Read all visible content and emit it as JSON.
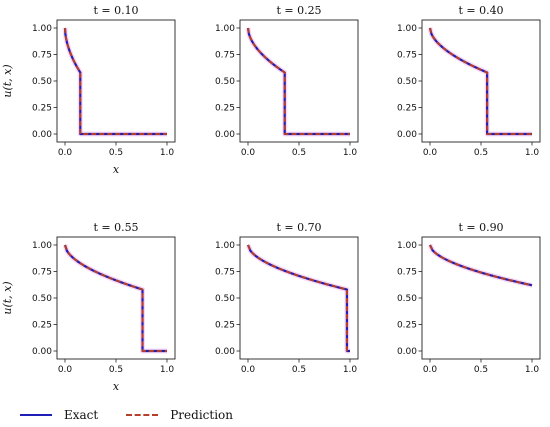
{
  "chart_data": [
    {
      "type": "line",
      "title": "t = 0.10",
      "ylabel": "u(t, x)",
      "xlabel": "x",
      "shock": 0.15,
      "left_value": 0.58,
      "x_ticks": [
        "0.0",
        "0.5",
        "1.0"
      ],
      "y_ticks": [
        "0.00",
        "0.25",
        "0.50",
        "0.75",
        "1.00"
      ],
      "xlim": [
        0,
        1
      ],
      "ylim": [
        0,
        1
      ],
      "series": [
        {
          "name": "Exact",
          "color": "#1f1fb8",
          "style": "solid"
        },
        {
          "name": "Prediction",
          "color": "#b5402a",
          "style": "dashed"
        }
      ]
    },
    {
      "type": "line",
      "title": "t = 0.25",
      "ylabel": "",
      "xlabel": "",
      "shock": 0.36,
      "left_value": 0.58,
      "x_ticks": [
        "0.0",
        "0.5",
        "1.0"
      ],
      "y_ticks": [
        "0.00",
        "0.25",
        "0.50",
        "0.75",
        "1.00"
      ],
      "xlim": [
        0,
        1
      ],
      "ylim": [
        0,
        1
      ],
      "series": [
        {
          "name": "Exact",
          "color": "#1f1fb8",
          "style": "solid"
        },
        {
          "name": "Prediction",
          "color": "#b5402a",
          "style": "dashed"
        }
      ]
    },
    {
      "type": "line",
      "title": "t = 0.40",
      "ylabel": "",
      "xlabel": "",
      "shock": 0.56,
      "left_value": 0.58,
      "x_ticks": [
        "0.0",
        "0.5",
        "1.0"
      ],
      "y_ticks": [
        "0.00",
        "0.25",
        "0.50",
        "0.75",
        "1.00"
      ],
      "xlim": [
        0,
        1
      ],
      "ylim": [
        0,
        1
      ],
      "series": [
        {
          "name": "Exact",
          "color": "#1f1fb8",
          "style": "solid"
        },
        {
          "name": "Prediction",
          "color": "#b5402a",
          "style": "dashed"
        }
      ]
    },
    {
      "type": "line",
      "title": "t = 0.55",
      "ylabel": "u(t, x)",
      "xlabel": "x",
      "shock": 0.76,
      "left_value": 0.58,
      "x_ticks": [
        "0.0",
        "0.5",
        "1.0"
      ],
      "y_ticks": [
        "0.00",
        "0.25",
        "0.50",
        "0.75",
        "1.00"
      ],
      "xlim": [
        0,
        1
      ],
      "ylim": [
        0,
        1
      ],
      "series": [
        {
          "name": "Exact",
          "color": "#1f1fb8",
          "style": "solid"
        },
        {
          "name": "Prediction",
          "color": "#b5402a",
          "style": "dashed"
        }
      ]
    },
    {
      "type": "line",
      "title": "t = 0.70",
      "ylabel": "",
      "xlabel": "",
      "shock": 0.97,
      "left_value": 0.58,
      "x_ticks": [
        "0.0",
        "0.5",
        "1.0"
      ],
      "y_ticks": [
        "0.00",
        "0.25",
        "0.50",
        "0.75",
        "1.00"
      ],
      "xlim": [
        0,
        1
      ],
      "ylim": [
        0,
        1
      ],
      "series": [
        {
          "name": "Exact",
          "color": "#1f1fb8",
          "style": "solid"
        },
        {
          "name": "Prediction",
          "color": "#b5402a",
          "style": "dashed"
        }
      ]
    },
    {
      "type": "line",
      "title": "t = 0.90",
      "ylabel": "",
      "xlabel": "",
      "shock": null,
      "left_value": 0.62,
      "x_ticks": [
        "0.0",
        "0.5",
        "1.0"
      ],
      "y_ticks": [
        "0.00",
        "0.25",
        "0.50",
        "0.75",
        "1.00"
      ],
      "xlim": [
        0,
        1
      ],
      "ylim": [
        0,
        1
      ],
      "series": [
        {
          "name": "Exact",
          "color": "#1f1fb8",
          "style": "solid"
        },
        {
          "name": "Prediction",
          "color": "#b5402a",
          "style": "dashed"
        }
      ]
    }
  ],
  "legend": {
    "exact_label": "Exact",
    "prediction_label": "Prediction",
    "exact_color": "#1f1fb8",
    "prediction_color": "#b5402a"
  }
}
